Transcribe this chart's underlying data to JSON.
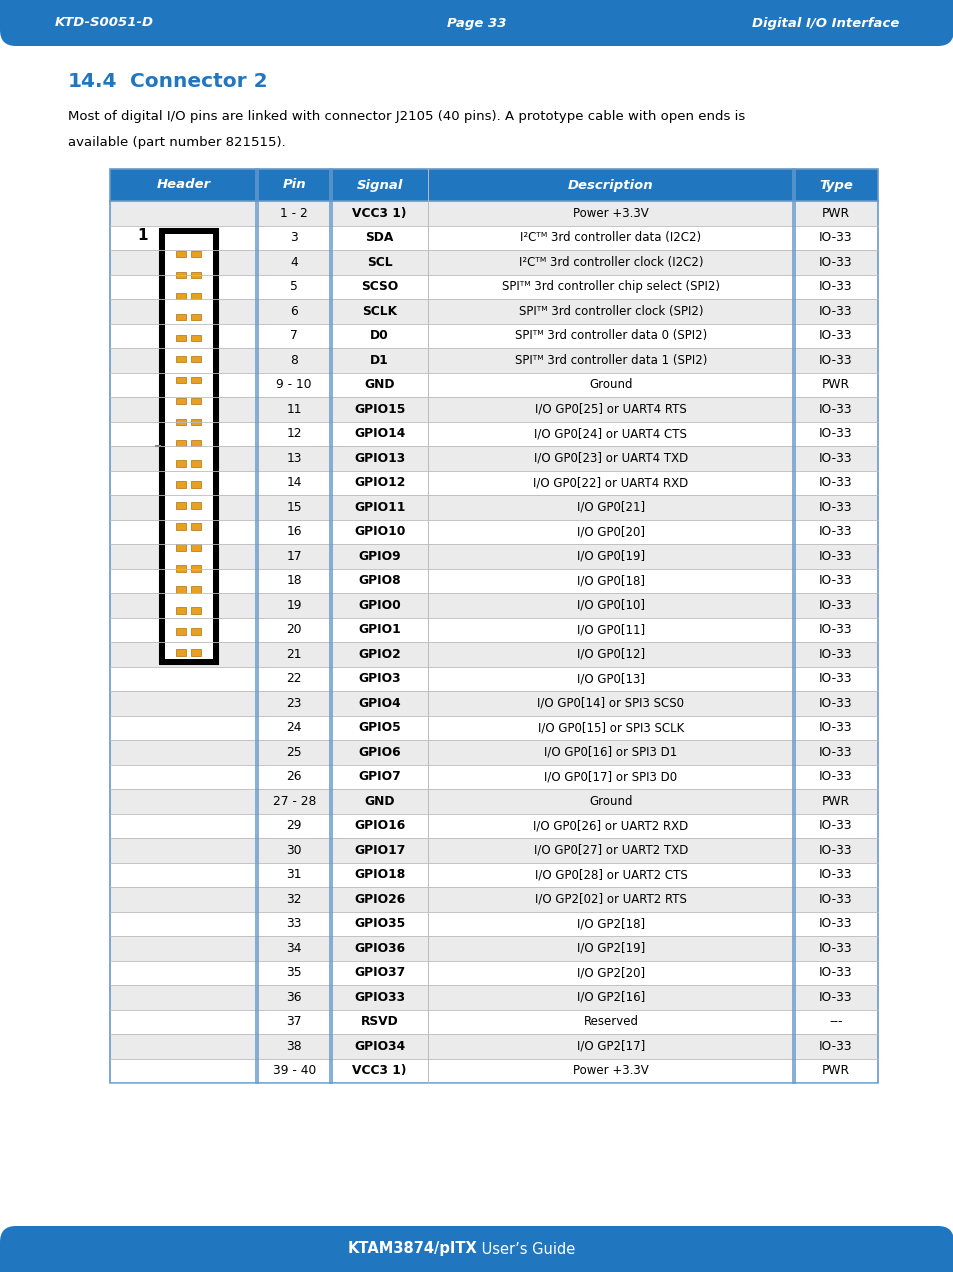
{
  "header_bg": "#2077c0",
  "title_color": "#2077c0",
  "top_bar_left": "KTD-S0051-D",
  "top_bar_center": "Page 33",
  "top_bar_right": "Digital I/O Interface",
  "bottom_bar_text_bold": "KTAM3874/pITX",
  "bottom_bar_text_normal": " User’s Guide",
  "section_num": "14.4",
  "section_name": "Connector 2",
  "body_line1": "Most of digital I/O pins are linked with connector J2105 (40 pins). A prototype cable with open ends is",
  "body_line2": "available (part number 821515).",
  "col_headers": [
    "Header",
    "Pin",
    "Signal",
    "Description",
    "Type"
  ],
  "rows": [
    [
      "",
      "1 - 2",
      "VCC3 1)",
      "Power +3.3V",
      "PWR"
    ],
    [
      "",
      "3",
      "SDA",
      "I²Cᵀᴹ 3rd controller data (I2C2)",
      "IO-33"
    ],
    [
      "",
      "4",
      "SCL",
      "I²Cᵀᴹ 3rd controller clock (I2C2)",
      "IO-33"
    ],
    [
      "",
      "5",
      "SCSO",
      "SPIᵀᴹ 3rd controller chip select (SPI2)",
      "IO-33"
    ],
    [
      "",
      "6",
      "SCLK",
      "SPIᵀᴹ 3rd controller clock (SPI2)",
      "IO-33"
    ],
    [
      "",
      "7",
      "D0",
      "SPIᵀᴹ 3rd controller data 0 (SPI2)",
      "IO-33"
    ],
    [
      "",
      "8",
      "D1",
      "SPIᵀᴹ 3rd controller data 1 (SPI2)",
      "IO-33"
    ],
    [
      "",
      "9 - 10",
      "GND",
      "Ground",
      "PWR"
    ],
    [
      "",
      "11",
      "GPIO15",
      "I/O GP0[25] or UART4 RTS",
      "IO-33"
    ],
    [
      "",
      "12",
      "GPIO14",
      "I/O GP0[24] or UART4 CTS",
      "IO-33"
    ],
    [
      "",
      "13",
      "GPIO13",
      "I/O GP0[23] or UART4 TXD",
      "IO-33"
    ],
    [
      "",
      "14",
      "GPIO12",
      "I/O GP0[22] or UART4 RXD",
      "IO-33"
    ],
    [
      "",
      "15",
      "GPIO11",
      "I/O GP0[21]",
      "IO-33"
    ],
    [
      "",
      "16",
      "GPIO10",
      "I/O GP0[20]",
      "IO-33"
    ],
    [
      "",
      "17",
      "GPIO9",
      "I/O GP0[19]",
      "IO-33"
    ],
    [
      "",
      "18",
      "GPIO8",
      "I/O GP0[18]",
      "IO-33"
    ],
    [
      "",
      "19",
      "GPIO0",
      "I/O GP0[10]",
      "IO-33"
    ],
    [
      "",
      "20",
      "GPIO1",
      "I/O GP0[11]",
      "IO-33"
    ],
    [
      "",
      "21",
      "GPIO2",
      "I/O GP0[12]",
      "IO-33"
    ],
    [
      "",
      "22",
      "GPIO3",
      "I/O GP0[13]",
      "IO-33"
    ],
    [
      "",
      "23",
      "GPIO4",
      "I/O GP0[14] or SPI3 SCS0",
      "IO-33"
    ],
    [
      "",
      "24",
      "GPIO5",
      "I/O GP0[15] or SPI3 SCLK",
      "IO-33"
    ],
    [
      "",
      "25",
      "GPIO6",
      "I/O GP0[16] or SPI3 D1",
      "IO-33"
    ],
    [
      "",
      "26",
      "GPIO7",
      "I/O GP0[17] or SPI3 D0",
      "IO-33"
    ],
    [
      "",
      "27 - 28",
      "GND",
      "Ground",
      "PWR"
    ],
    [
      "",
      "29",
      "GPIO16",
      "I/O GP0[26] or UART2 RXD",
      "IO-33"
    ],
    [
      "",
      "30",
      "GPIO17",
      "I/O GP0[27] or UART2 TXD",
      "IO-33"
    ],
    [
      "",
      "31",
      "GPIO18",
      "I/O GP0[28] or UART2 CTS",
      "IO-33"
    ],
    [
      "",
      "32",
      "GPIO26",
      "I/O GP2[02] or UART2 RTS",
      "IO-33"
    ],
    [
      "",
      "33",
      "GPIO35",
      "I/O GP2[18]",
      "IO-33"
    ],
    [
      "",
      "34",
      "GPIO36",
      "I/O GP2[19]",
      "IO-33"
    ],
    [
      "",
      "35",
      "GPIO37",
      "I/O GP2[20]",
      "IO-33"
    ],
    [
      "",
      "36",
      "GPIO33",
      "I/O GP2[16]",
      "IO-33"
    ],
    [
      "",
      "37",
      "RSVD",
      "Reserved",
      "---"
    ],
    [
      "",
      "38",
      "GPIO34",
      "I/O GP2[17]",
      "IO-33"
    ],
    [
      "",
      "39 - 40",
      "VCC3 1)",
      "Power +3.3V",
      "PWR"
    ]
  ],
  "desc_bold": {
    "2": [
      "GP0[25]",
      "GP0[24]",
      "GP0[23]",
      "GP0[22]"
    ],
    "3": [
      "GP0[21]"
    ],
    "4": [
      "GP0[20]"
    ],
    "5": [
      "GP0[19]"
    ],
    "6": [
      "GP0[18]"
    ],
    "7": [
      "GP0[10]"
    ],
    "8": [
      "GP0[11]"
    ],
    "9": [
      "GP0[12]"
    ],
    "10": [
      "GP0[13]"
    ],
    "11": [
      "GP0[14]"
    ],
    "12": [
      "GP0[15]"
    ],
    "13": [
      "GP0[16]"
    ],
    "14": [
      "GP0[17]"
    ],
    "17": [
      "GP0[26]"
    ],
    "18": [
      "GP0[27]"
    ],
    "19": [
      "GP0[28]"
    ],
    "20": [
      "GP2[02]"
    ],
    "21": [
      "GP2[18]"
    ],
    "22": [
      "GP2[19]"
    ],
    "23": [
      "GP2[20]"
    ],
    "24": [
      "GP2[16]"
    ],
    "26": [
      "GP2[17]"
    ]
  },
  "row_colors": [
    "#ebebeb",
    "#ffffff"
  ],
  "bg_color": "#ffffff",
  "bar_color": "#2077c0",
  "table_border_color": "#6699cc",
  "row_line_color": "#bbbbbb",
  "double_line_color": "#6699cc"
}
